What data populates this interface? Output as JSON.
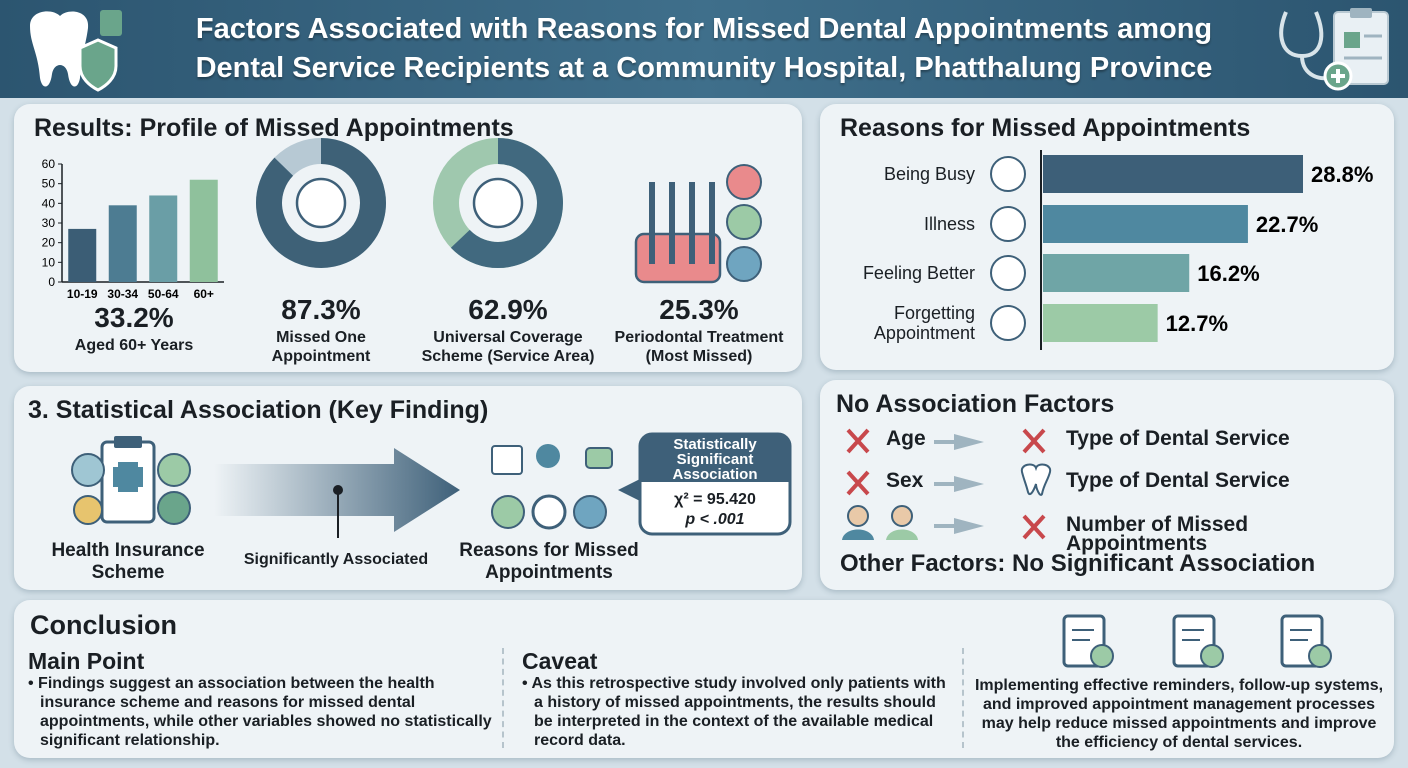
{
  "header": {
    "title_line1": "Factors Associated with Reasons for Missed Dental Appointments among",
    "title_line2": "Dental Service Recipients at a Community Hospital, Phatthalung Province"
  },
  "profile": {
    "title": "Results: Profile of Missed Appointments",
    "chart_data": {
      "type": "bar",
      "categories": [
        "10-19",
        "30-34",
        "50-64",
        "60+"
      ],
      "values": [
        27,
        39,
        44,
        52
      ],
      "colors": [
        "#3b5d75",
        "#4d7c92",
        "#6a9ea6",
        "#8fc19c"
      ],
      "ylim": [
        0,
        60
      ],
      "yticks": [
        0,
        10,
        20,
        30,
        40,
        50,
        60
      ]
    },
    "age_stat": {
      "value": "33.2%",
      "caption": "Aged 60+ Years"
    },
    "donuts": [
      {
        "value": 87.3,
        "value_label": "87.3%",
        "caption": "Missed One Appointment",
        "color": "#3e6177",
        "rest_color": "#b7c9d4"
      },
      {
        "value": 62.9,
        "value_label": "62.9%",
        "caption": "Universal Coverage Scheme (Service Area)",
        "color": "#41697f",
        "rest_color": "#9fc8ae"
      }
    ],
    "periodontal": {
      "value": "25.3%",
      "caption": "Periodontal Treatment (Most Missed)"
    }
  },
  "reasons": {
    "title": "Reasons for Missed Appointments",
    "chart_data": {
      "type": "hbar",
      "categories": [
        "Being Busy",
        "Illness",
        "Feeling Better",
        "Forgetting Appointment"
      ],
      "values": [
        28.8,
        22.7,
        16.2,
        12.7
      ],
      "value_labels": [
        "28.8%",
        "22.7%",
        "16.2%",
        "12.7%"
      ],
      "colors": [
        "#3d5f78",
        "#4f88a0",
        "#6fa5a6",
        "#9ccaa6"
      ]
    }
  },
  "association": {
    "title": "3. Statistical Association (Key Finding)",
    "left": "Health Insurance Scheme",
    "arrow": "Significantly Associated",
    "right": "Reasons for Missed Appointments",
    "callout_title": "Statistically Significant Association",
    "chi": "χ² = 95.420",
    "p": "p < .001"
  },
  "no_association": {
    "title": "No Association Factors",
    "rows": [
      {
        "left": "Age",
        "right": "Type of Dental Service"
      },
      {
        "left": "Sex",
        "right": "Type of Dental Service"
      },
      {
        "right": "Number of Missed Appointments"
      }
    ],
    "footer": "Other Factors: No Significant Association"
  },
  "conclusion": {
    "title": "Conclusion",
    "main_point": {
      "heading": "Main Point",
      "text": "Findings suggest an association between the health insurance scheme and reasons for missed dental appointments, while other variables showed no statistically significant relationship."
    },
    "caveat": {
      "heading": "Caveat",
      "text": "As this retrospective study involved only patients with a history of missed appointments, the results should be interpreted in the context of the available medical record data."
    },
    "recommendation": "Implementing effective reminders, follow-up systems, and improved appointment management processes may help reduce missed appointments and improve the efficiency of dental services."
  }
}
